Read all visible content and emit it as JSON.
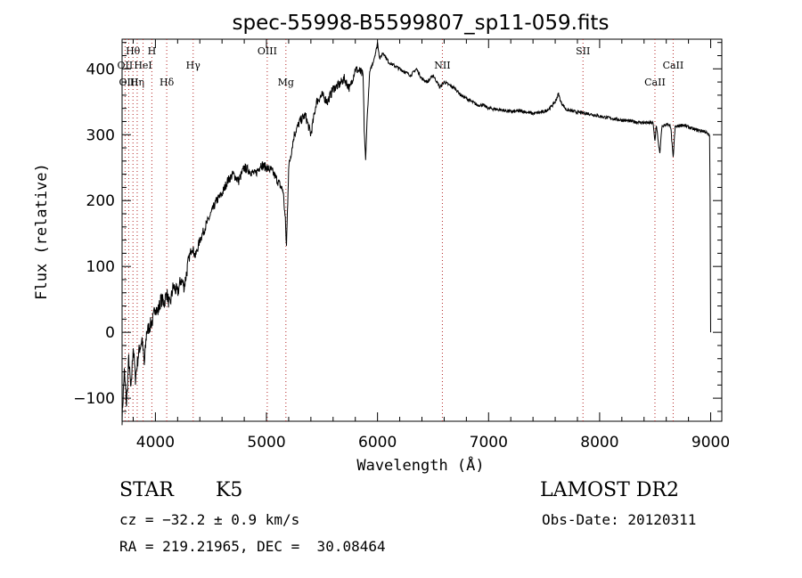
{
  "chart_data": {
    "type": "line",
    "title": "spec-55998-B5599807_sp11-059.fits",
    "xlabel": "Wavelength (Å)",
    "ylabel": "Flux (relative)",
    "xlim": [
      3700,
      9100
    ],
    "ylim": [
      -135,
      445
    ],
    "xticks": [
      4000,
      5000,
      6000,
      7000,
      8000,
      9000
    ],
    "yticks": [
      -100,
      0,
      100,
      200,
      300,
      400
    ],
    "grid": false,
    "series": [
      {
        "points": [
          [
            3700,
            -130
          ],
          [
            3720,
            -60
          ],
          [
            3740,
            -110
          ],
          [
            3760,
            -40
          ],
          [
            3780,
            -90
          ],
          [
            3800,
            -20
          ],
          [
            3820,
            -70
          ],
          [
            3850,
            -30
          ],
          [
            3880,
            -10
          ],
          [
            3900,
            -50
          ],
          [
            3920,
            0
          ],
          [
            3950,
            10
          ],
          [
            3980,
            20
          ],
          [
            4000,
            40
          ],
          [
            4020,
            30
          ],
          [
            4050,
            50
          ],
          [
            4080,
            45
          ],
          [
            4100,
            60
          ],
          [
            4130,
            40
          ],
          [
            4160,
            70
          ],
          [
            4200,
            60
          ],
          [
            4230,
            80
          ],
          [
            4260,
            70
          ],
          [
            4300,
            110
          ],
          [
            4330,
            130
          ],
          [
            4360,
            115
          ],
          [
            4400,
            140
          ],
          [
            4450,
            160
          ],
          [
            4500,
            180
          ],
          [
            4550,
            200
          ],
          [
            4600,
            210
          ],
          [
            4650,
            230
          ],
          [
            4700,
            240
          ],
          [
            4750,
            230
          ],
          [
            4800,
            250
          ],
          [
            4850,
            245
          ],
          [
            4900,
            240
          ],
          [
            4950,
            255
          ],
          [
            5000,
            250
          ],
          [
            5050,
            245
          ],
          [
            5100,
            230
          ],
          [
            5150,
            215
          ],
          [
            5170,
            170
          ],
          [
            5180,
            130
          ],
          [
            5200,
            250
          ],
          [
            5250,
            300
          ],
          [
            5300,
            320
          ],
          [
            5350,
            330
          ],
          [
            5400,
            300
          ],
          [
            5450,
            350
          ],
          [
            5500,
            360
          ],
          [
            5550,
            350
          ],
          [
            5600,
            370
          ],
          [
            5650,
            375
          ],
          [
            5700,
            385
          ],
          [
            5750,
            370
          ],
          [
            5800,
            400
          ],
          [
            5850,
            395
          ],
          [
            5870,
            390
          ],
          [
            5880,
            310
          ],
          [
            5893,
            258
          ],
          [
            5905,
            320
          ],
          [
            5930,
            395
          ],
          [
            5960,
            410
          ],
          [
            5990,
            430
          ],
          [
            6000,
            440
          ],
          [
            6020,
            415
          ],
          [
            6050,
            425
          ],
          [
            6100,
            410
          ],
          [
            6150,
            405
          ],
          [
            6200,
            400
          ],
          [
            6250,
            395
          ],
          [
            6300,
            390
          ],
          [
            6350,
            400
          ],
          [
            6400,
            385
          ],
          [
            6450,
            380
          ],
          [
            6500,
            390
          ],
          [
            6563,
            372
          ],
          [
            6600,
            380
          ],
          [
            6650,
            375
          ],
          [
            6700,
            370
          ],
          [
            6750,
            360
          ],
          [
            6800,
            355
          ],
          [
            6850,
            350
          ],
          [
            6900,
            345
          ],
          [
            6950,
            345
          ],
          [
            7000,
            340
          ],
          [
            7100,
            338
          ],
          [
            7200,
            335
          ],
          [
            7300,
            336
          ],
          [
            7400,
            332
          ],
          [
            7500,
            335
          ],
          [
            7550,
            340
          ],
          [
            7600,
            350
          ],
          [
            7630,
            362
          ],
          [
            7650,
            350
          ],
          [
            7700,
            338
          ],
          [
            7800,
            334
          ],
          [
            7900,
            332
          ],
          [
            8000,
            328
          ],
          [
            8100,
            325
          ],
          [
            8200,
            322
          ],
          [
            8300,
            320
          ],
          [
            8400,
            318
          ],
          [
            8480,
            318
          ],
          [
            8498,
            290
          ],
          [
            8510,
            315
          ],
          [
            8542,
            270
          ],
          [
            8560,
            312
          ],
          [
            8600,
            316
          ],
          [
            8640,
            312
          ],
          [
            8662,
            265
          ],
          [
            8680,
            312
          ],
          [
            8750,
            315
          ],
          [
            8850,
            308
          ],
          [
            8950,
            305
          ],
          [
            8990,
            298
          ],
          [
            8995,
            200
          ],
          [
            8998,
            60
          ],
          [
            9000,
            0
          ]
        ]
      }
    ],
    "lines": [
      {
        "name": "Hθ",
        "x": 3798,
        "row": 1
      },
      {
        "name": "OII",
        "x": 3727,
        "row": 2
      },
      {
        "name": "OIII",
        "x": 3760,
        "row": 3
      },
      {
        "name": "Hη",
        "x": 3836,
        "row": 3
      },
      {
        "name": "H",
        "x": 3968,
        "row": 1
      },
      {
        "name": "HeI",
        "x": 3889,
        "row": 2
      },
      {
        "name": "Hδ",
        "x": 4102,
        "row": 3
      },
      {
        "name": "Hγ",
        "x": 4340,
        "row": 2
      },
      {
        "name": "OIII",
        "x": 5007,
        "row": 1
      },
      {
        "name": "Mg",
        "x": 5175,
        "row": 3
      },
      {
        "name": "NII",
        "x": 6584,
        "row": 2
      },
      {
        "name": "SII",
        "x": 7850,
        "row": 1
      },
      {
        "name": "CaII",
        "x": 8498,
        "row": 3
      },
      {
        "name": "CaII",
        "x": 8662,
        "row": 2
      }
    ]
  },
  "info": {
    "object_class": "STAR",
    "subclass": "K5",
    "survey": "LAMOST DR2",
    "cz": "cz = −32.2 ± 0.9 km/s",
    "obs_date": "Obs-Date: 20120311",
    "coords": "RA = 219.21965, DEC =  30.08464"
  }
}
